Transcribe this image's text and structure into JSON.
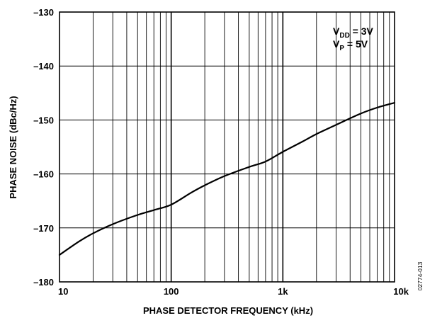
{
  "chart_data": {
    "type": "line",
    "title": "",
    "xlabel": "PHASE DETECTOR FREQUENCY (kHz)",
    "ylabel": "PHASE NOISE (dBc/Hz)",
    "x_scale": "log",
    "xlim": [
      10,
      10000
    ],
    "ylim": [
      -180,
      -130
    ],
    "x_ticks": [
      {
        "value": 10,
        "label": "10"
      },
      {
        "value": 100,
        "label": "100"
      },
      {
        "value": 1000,
        "label": "1k"
      },
      {
        "value": 10000,
        "label": "10k"
      }
    ],
    "y_ticks": [
      {
        "value": -130,
        "label": "–130"
      },
      {
        "value": -140,
        "label": "–140"
      },
      {
        "value": -150,
        "label": "–150"
      },
      {
        "value": -160,
        "label": "–160"
      },
      {
        "value": -170,
        "label": "–170"
      },
      {
        "value": -180,
        "label": "–180"
      }
    ],
    "grid": true,
    "annotation": {
      "line1": {
        "main": "V",
        "sub": "DD",
        "rest": " = 3V"
      },
      "line2": {
        "main": "V",
        "sub": "P",
        "rest": " = 5V"
      }
    },
    "series": [
      {
        "x": [
          10,
          15,
          20,
          30,
          50,
          70,
          100,
          150,
          200,
          300,
          500,
          700,
          1000,
          1500,
          2000,
          3000,
          5000,
          7000,
          10000
        ],
        "y": [
          -175,
          -172.5,
          -171,
          -169.3,
          -167.6,
          -166.7,
          -165.7,
          -163.5,
          -162.1,
          -160.4,
          -158.7,
          -157.7,
          -155.9,
          -154.0,
          -152.6,
          -150.9,
          -148.8,
          -147.7,
          -146.8
        ]
      }
    ],
    "line_color": "#000000"
  },
  "figure_id": "02774-013"
}
